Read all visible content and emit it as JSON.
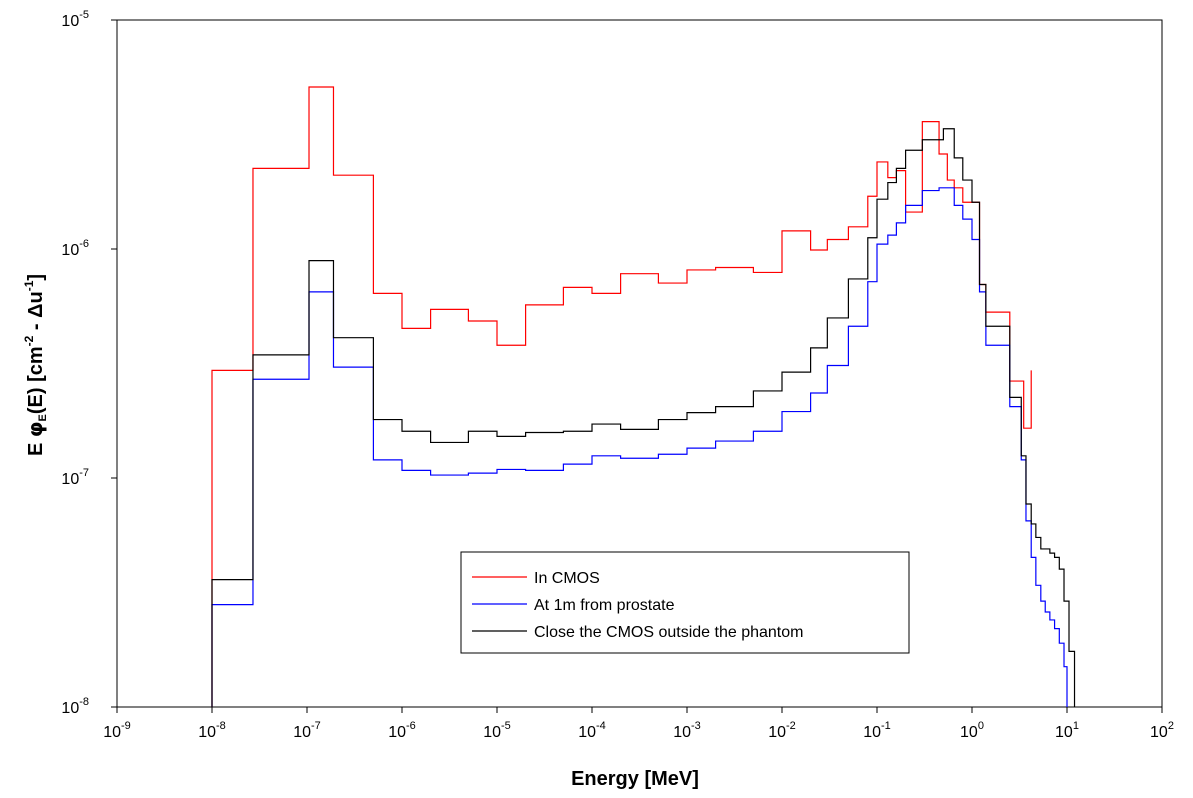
{
  "chart_data": {
    "type": "line",
    "step": true,
    "xlabel": "Energy  [MeV]",
    "ylabel_parts": [
      "E  ",
      "φ",
      "E",
      "(E)  [cm",
      "-2",
      " - Δu",
      "-1",
      "]"
    ],
    "xscale": "log",
    "yscale": "log",
    "xlim": [
      1e-09,
      100
    ],
    "ylim": [
      1e-08,
      1e-05
    ],
    "x_ticks": [
      {
        "base": "10",
        "exp": "-9"
      },
      {
        "base": "10",
        "exp": "-8"
      },
      {
        "base": "10",
        "exp": "-7"
      },
      {
        "base": "10",
        "exp": "-6"
      },
      {
        "base": "10",
        "exp": "-5"
      },
      {
        "base": "10",
        "exp": "-4"
      },
      {
        "base": "10",
        "exp": "-3"
      },
      {
        "base": "10",
        "exp": "-2"
      },
      {
        "base": "10",
        "exp": "-1"
      },
      {
        "base": "10",
        "exp": "0"
      },
      {
        "base": "10",
        "exp": "1"
      },
      {
        "base": "10",
        "exp": "2"
      }
    ],
    "y_ticks": [
      {
        "base": "10",
        "exp": "-8"
      },
      {
        "base": "10",
        "exp": "-7"
      },
      {
        "base": "10",
        "exp": "-6"
      },
      {
        "base": "10",
        "exp": "-5"
      }
    ],
    "grid": false,
    "legend_position": "bottom-center",
    "series": [
      {
        "name": "In CMOS",
        "color": "#ff0000",
        "steps": [
          [
            1e-08,
            2.7e-08,
            2.95e-07
          ],
          [
            2.7e-08,
            1.05e-07,
            2.25e-06
          ],
          [
            1.05e-07,
            1.9e-07,
            5.1e-06
          ],
          [
            1.9e-07,
            5e-07,
            2.1e-06
          ],
          [
            5e-07,
            1e-06,
            6.4e-07
          ],
          [
            1e-06,
            2e-06,
            4.5e-07
          ],
          [
            2e-06,
            5e-06,
            5.45e-07
          ],
          [
            5e-06,
            1e-05,
            4.85e-07
          ],
          [
            1e-05,
            2e-05,
            3.8e-07
          ],
          [
            2e-05,
            5e-05,
            5.7e-07
          ],
          [
            5e-05,
            0.0001,
            6.8e-07
          ],
          [
            0.0001,
            0.0002,
            6.4e-07
          ],
          [
            0.0002,
            0.0005,
            7.8e-07
          ],
          [
            0.0005,
            0.001,
            7.1e-07
          ],
          [
            0.001,
            0.002,
            8.1e-07
          ],
          [
            0.002,
            0.005,
            8.3e-07
          ],
          [
            0.005,
            0.01,
            7.9e-07
          ],
          [
            0.01,
            0.02,
            1.2e-06
          ],
          [
            0.02,
            0.03,
            9.9e-07
          ],
          [
            0.03,
            0.05,
            1.1e-06
          ],
          [
            0.05,
            0.08,
            1.25e-06
          ],
          [
            0.08,
            0.1,
            1.7e-06
          ],
          [
            0.1,
            0.13,
            2.4e-06
          ],
          [
            0.13,
            0.16,
            2.05e-06
          ],
          [
            0.16,
            0.2,
            2.2e-06
          ],
          [
            0.2,
            0.3,
            1.45e-06
          ],
          [
            0.3,
            0.45,
            3.6e-06
          ],
          [
            0.45,
            0.55,
            2.6e-06
          ],
          [
            0.55,
            0.65,
            2e-06
          ],
          [
            0.65,
            0.8,
            1.85e-06
          ],
          [
            0.8,
            1.0,
            1.6e-06
          ],
          [
            1.0,
            1.2,
            1.6e-06
          ],
          [
            1.2,
            1.4,
            7e-07
          ],
          [
            1.4,
            2.5,
            5.3e-07
          ],
          [
            2.5,
            3.5,
            2.65e-07
          ],
          [
            3.5,
            4.2,
            1.65e-07
          ]
        ],
        "end_spike": 2.95e-07
      },
      {
        "name": "At 1m from prostate",
        "color": "#0000ff",
        "steps": [
          [
            1e-08,
            2.7e-08,
            2.8e-08
          ],
          [
            2.7e-08,
            1.05e-07,
            2.7e-07
          ],
          [
            1.05e-07,
            1.9e-07,
            6.5e-07
          ],
          [
            1.9e-07,
            5e-07,
            3.05e-07
          ],
          [
            5e-07,
            1e-06,
            1.2e-07
          ],
          [
            1e-06,
            2e-06,
            1.08e-07
          ],
          [
            2e-06,
            5e-06,
            1.03e-07
          ],
          [
            5e-06,
            1e-05,
            1.05e-07
          ],
          [
            1e-05,
            2e-05,
            1.09e-07
          ],
          [
            2e-05,
            5e-05,
            1.08e-07
          ],
          [
            5e-05,
            0.0001,
            1.15e-07
          ],
          [
            0.0001,
            0.0002,
            1.25e-07
          ],
          [
            0.0002,
            0.0005,
            1.22e-07
          ],
          [
            0.0005,
            0.001,
            1.27e-07
          ],
          [
            0.001,
            0.002,
            1.35e-07
          ],
          [
            0.002,
            0.005,
            1.45e-07
          ],
          [
            0.005,
            0.01,
            1.6e-07
          ],
          [
            0.01,
            0.02,
            1.95e-07
          ],
          [
            0.02,
            0.03,
            2.35e-07
          ],
          [
            0.03,
            0.05,
            3.1e-07
          ],
          [
            0.05,
            0.08,
            4.6e-07
          ],
          [
            0.08,
            0.1,
            7.2e-07
          ],
          [
            0.1,
            0.13,
            1.05e-06
          ],
          [
            0.13,
            0.16,
            1.15e-06
          ],
          [
            0.16,
            0.2,
            1.3e-06
          ],
          [
            0.2,
            0.3,
            1.55e-06
          ],
          [
            0.3,
            0.45,
            1.8e-06
          ],
          [
            0.45,
            0.65,
            1.85e-06
          ],
          [
            0.65,
            0.8,
            1.55e-06
          ],
          [
            0.8,
            1.0,
            1.35e-06
          ],
          [
            1.0,
            1.2,
            1.1e-06
          ],
          [
            1.2,
            1.4,
            6.5e-07
          ],
          [
            1.4,
            2.5,
            3.8e-07
          ],
          [
            2.5,
            3.3,
            2.05e-07
          ],
          [
            3.3,
            3.7,
            1.2e-07
          ],
          [
            3.7,
            4.2,
            6.5e-08
          ],
          [
            4.2,
            4.7,
            4.5e-08
          ],
          [
            4.7,
            5.3,
            3.4e-08
          ],
          [
            5.3,
            5.9,
            2.9e-08
          ],
          [
            5.9,
            6.6,
            2.6e-08
          ],
          [
            6.6,
            7.4,
            2.4e-08
          ],
          [
            7.4,
            8.3,
            2.2e-08
          ],
          [
            8.3,
            9.3,
            1.9e-08
          ],
          [
            9.3,
            10.0,
            1.5e-08
          ]
        ]
      },
      {
        "name": "Close the CMOS outside the phantom",
        "color": "#000000",
        "steps": [
          [
            1e-08,
            2.7e-08,
            3.6e-08
          ],
          [
            2.7e-08,
            1.05e-07,
            3.45e-07
          ],
          [
            1.05e-07,
            1.9e-07,
            8.9e-07
          ],
          [
            1.9e-07,
            5e-07,
            4.1e-07
          ],
          [
            5e-07,
            1e-06,
            1.8e-07
          ],
          [
            1e-06,
            2e-06,
            1.6e-07
          ],
          [
            2e-06,
            5e-06,
            1.43e-07
          ],
          [
            5e-06,
            1e-05,
            1.6e-07
          ],
          [
            1e-05,
            2e-05,
            1.52e-07
          ],
          [
            2e-05,
            5e-05,
            1.58e-07
          ],
          [
            5e-05,
            0.0001,
            1.6e-07
          ],
          [
            0.0001,
            0.0002,
            1.72e-07
          ],
          [
            0.0002,
            0.0005,
            1.63e-07
          ],
          [
            0.0005,
            0.001,
            1.8e-07
          ],
          [
            0.001,
            0.002,
            1.93e-07
          ],
          [
            0.002,
            0.005,
            2.05e-07
          ],
          [
            0.005,
            0.01,
            2.4e-07
          ],
          [
            0.01,
            0.02,
            2.9e-07
          ],
          [
            0.02,
            0.03,
            3.7e-07
          ],
          [
            0.03,
            0.05,
            5e-07
          ],
          [
            0.05,
            0.08,
            7.4e-07
          ],
          [
            0.08,
            0.1,
            1.12e-06
          ],
          [
            0.1,
            0.13,
            1.65e-06
          ],
          [
            0.13,
            0.16,
            1.95e-06
          ],
          [
            0.16,
            0.2,
            2.25e-06
          ],
          [
            0.2,
            0.3,
            2.7e-06
          ],
          [
            0.3,
            0.5,
            3e-06
          ],
          [
            0.5,
            0.65,
            3.35e-06
          ],
          [
            0.65,
            0.8,
            2.5e-06
          ],
          [
            0.8,
            1.0,
            2e-06
          ],
          [
            1.0,
            1.2,
            1.6e-06
          ],
          [
            1.2,
            1.4,
            7e-07
          ],
          [
            1.4,
            2.5,
            4.6e-07
          ],
          [
            2.5,
            3.3,
            2.25e-07
          ],
          [
            3.3,
            3.7,
            1.25e-07
          ],
          [
            3.7,
            4.2,
            7.7e-08
          ],
          [
            4.2,
            4.7,
            6.3e-08
          ],
          [
            4.7,
            5.3,
            5.5e-08
          ],
          [
            5.3,
            6.6,
            4.9e-08
          ],
          [
            6.6,
            7.4,
            4.7e-08
          ],
          [
            7.4,
            8.3,
            4.5e-08
          ],
          [
            8.3,
            9.3,
            4e-08
          ],
          [
            9.3,
            10.5,
            2.9e-08
          ],
          [
            10.5,
            12.0,
            1.75e-08
          ]
        ]
      }
    ]
  }
}
